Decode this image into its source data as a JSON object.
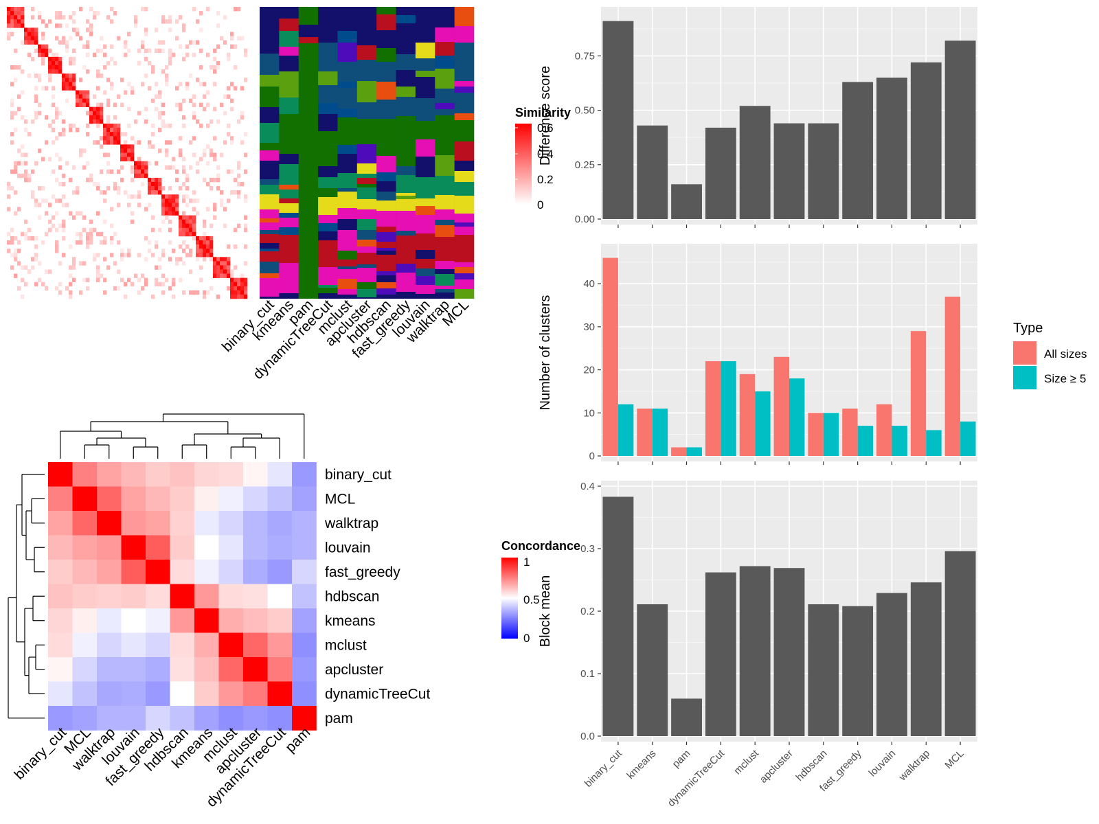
{
  "legends": {
    "similarity": {
      "title": "Similarity",
      "ticks": [
        "0.6",
        "0.4",
        "0.2",
        "0"
      ]
    },
    "concordance": {
      "title": "Concordance",
      "ticks": [
        "1",
        "0.5",
        "0"
      ]
    },
    "type": {
      "title": "Type",
      "items": [
        "All sizes",
        "Size ≥ 5"
      ]
    }
  },
  "colors": {
    "bar_dark": "#595959",
    "all_sizes": "#F8766D",
    "size5": "#00BFC4",
    "panel_bg": "#EBEBEB",
    "heat_red": "#FF0000",
    "heat_blue": "#0000FF"
  },
  "membership_columns": [
    "binary_cut",
    "kmeans",
    "pam",
    "dynamicTreeCut",
    "mclust",
    "apcluster",
    "hdbscan",
    "fast_greedy",
    "louvain",
    "walktrap",
    "MCL"
  ],
  "concordance_order": [
    "binary_cut",
    "MCL",
    "walktrap",
    "louvain",
    "fast_greedy",
    "hdbscan",
    "kmeans",
    "mclust",
    "apcluster",
    "dynamicTreeCut",
    "pam"
  ],
  "chart_data": [
    {
      "type": "heatmap",
      "title": "",
      "legend_title": "Concordance",
      "rows": [
        "binary_cut",
        "MCL",
        "walktrap",
        "louvain",
        "fast_greedy",
        "hdbscan",
        "kmeans",
        "mclust",
        "apcluster",
        "dynamicTreeCut",
        "pam"
      ],
      "columns": [
        "binary_cut",
        "MCL",
        "walktrap",
        "louvain",
        "fast_greedy",
        "hdbscan",
        "kmeans",
        "mclust",
        "apcluster",
        "dynamicTreeCut",
        "pam"
      ],
      "range": [
        0,
        1
      ],
      "values": [
        [
          1.0,
          0.75,
          0.68,
          0.64,
          0.6,
          0.62,
          0.58,
          0.57,
          0.52,
          0.45,
          0.3
        ],
        [
          0.75,
          1.0,
          0.8,
          0.68,
          0.64,
          0.6,
          0.53,
          0.47,
          0.42,
          0.38,
          0.32
        ],
        [
          0.68,
          0.8,
          1.0,
          0.7,
          0.68,
          0.59,
          0.46,
          0.42,
          0.36,
          0.33,
          0.35
        ],
        [
          0.64,
          0.68,
          0.7,
          1.0,
          0.82,
          0.6,
          0.5,
          0.45,
          0.36,
          0.34,
          0.35
        ],
        [
          0.6,
          0.64,
          0.68,
          0.82,
          1.0,
          0.57,
          0.47,
          0.42,
          0.34,
          0.3,
          0.42
        ],
        [
          0.62,
          0.6,
          0.59,
          0.6,
          0.57,
          1.0,
          0.7,
          0.57,
          0.56,
          0.5,
          0.38
        ],
        [
          0.58,
          0.53,
          0.46,
          0.5,
          0.47,
          0.7,
          1.0,
          0.66,
          0.63,
          0.6,
          0.32
        ],
        [
          0.57,
          0.47,
          0.42,
          0.45,
          0.42,
          0.57,
          0.66,
          1.0,
          0.8,
          0.7,
          0.28
        ],
        [
          0.52,
          0.42,
          0.36,
          0.36,
          0.34,
          0.56,
          0.63,
          0.8,
          1.0,
          0.76,
          0.3
        ],
        [
          0.45,
          0.38,
          0.33,
          0.34,
          0.3,
          0.5,
          0.6,
          0.7,
          0.76,
          1.0,
          0.28
        ],
        [
          0.3,
          0.32,
          0.35,
          0.35,
          0.42,
          0.38,
          0.32,
          0.28,
          0.3,
          0.28,
          1.0
        ]
      ]
    },
    {
      "type": "bar",
      "title": "",
      "categories": [
        "binary_cut",
        "kmeans",
        "pam",
        "dynamicTreeCut",
        "mclust",
        "apcluster",
        "hdbscan",
        "fast_greedy",
        "louvain",
        "walktrap",
        "MCL"
      ],
      "values": [
        0.91,
        0.43,
        0.16,
        0.42,
        0.52,
        0.44,
        0.44,
        0.63,
        0.65,
        0.72,
        0.82
      ],
      "xlabel": "",
      "ylabel": "Difference score",
      "ylim": [
        0,
        0.95
      ],
      "yticks": [
        "0.00",
        "0.25",
        "0.50",
        "0.75"
      ],
      "grid": true
    },
    {
      "type": "bar",
      "title": "",
      "categories": [
        "binary_cut",
        "kmeans",
        "pam",
        "dynamicTreeCut",
        "mclust",
        "apcluster",
        "hdbscan",
        "fast_greedy",
        "louvain",
        "walktrap",
        "MCL"
      ],
      "series": [
        {
          "name": "All sizes",
          "values": [
            46,
            11,
            2,
            22,
            19,
            23,
            10,
            11,
            12,
            29,
            37
          ]
        },
        {
          "name": "Size ≥ 5",
          "values": [
            12,
            11,
            2,
            22,
            15,
            18,
            10,
            7,
            7,
            6,
            8
          ]
        }
      ],
      "xlabel": "",
      "ylabel": "Number of clusters",
      "ylim": [
        0,
        48
      ],
      "yticks": [
        "0",
        "10",
        "20",
        "30",
        "40"
      ],
      "legend_title": "Type",
      "legend_position": "right",
      "grid": true
    },
    {
      "type": "bar",
      "title": "",
      "categories": [
        "binary_cut",
        "kmeans",
        "pam",
        "dynamicTreeCut",
        "mclust",
        "apcluster",
        "hdbscan",
        "fast_greedy",
        "louvain",
        "walktrap",
        "MCL"
      ],
      "values": [
        0.383,
        0.211,
        0.06,
        0.262,
        0.272,
        0.269,
        0.211,
        0.208,
        0.229,
        0.246,
        0.296
      ],
      "xlabel": "",
      "ylabel": "Block mean",
      "ylim": [
        0,
        0.4
      ],
      "yticks": [
        "0.0",
        "0.1",
        "0.2",
        "0.3",
        "0.4"
      ],
      "grid": true
    }
  ]
}
